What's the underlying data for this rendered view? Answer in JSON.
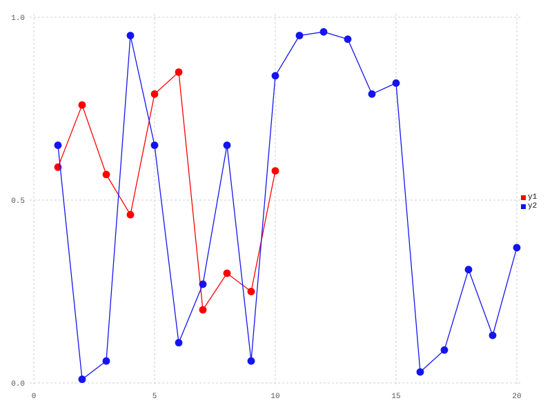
{
  "chart_data": {
    "type": "line",
    "title": "",
    "xlabel": "",
    "ylabel": "",
    "xlim": [
      0,
      20
    ],
    "ylim": [
      0.0,
      1.0
    ],
    "x_ticks": [
      0,
      5,
      10,
      15,
      20
    ],
    "x_tick_labels": [
      "0",
      "5",
      "10",
      "15",
      "20"
    ],
    "y_ticks": [
      0.0,
      0.5,
      1.0
    ],
    "y_tick_labels": [
      "0.0",
      "0.5",
      "1.0"
    ],
    "grid": "dashed",
    "legend_position": "right-middle",
    "series": [
      {
        "name": "y1",
        "color": "#ff0000",
        "marker": "circle",
        "x": [
          1,
          2,
          3,
          4,
          5,
          6,
          7,
          8,
          9,
          10
        ],
        "y": [
          0.59,
          0.76,
          0.57,
          0.46,
          0.79,
          0.85,
          0.2,
          0.3,
          0.25,
          0.58
        ]
      },
      {
        "name": "y2",
        "color": "#1414f0",
        "marker": "circle",
        "x": [
          1,
          2,
          3,
          4,
          5,
          6,
          7,
          8,
          9,
          10,
          11,
          12,
          13,
          14,
          15,
          16,
          17,
          18,
          19,
          20
        ],
        "y": [
          0.65,
          0.01,
          0.06,
          0.95,
          0.65,
          0.11,
          0.27,
          0.65,
          0.06,
          0.84,
          0.95,
          0.96,
          0.94,
          0.79,
          0.82,
          0.03,
          0.09,
          0.31,
          0.13,
          0.37
        ]
      }
    ],
    "colors": {
      "background": "#ffffff",
      "grid": "#ccccd8",
      "tick_text": "#55555f",
      "legend_text": "#111111"
    }
  }
}
